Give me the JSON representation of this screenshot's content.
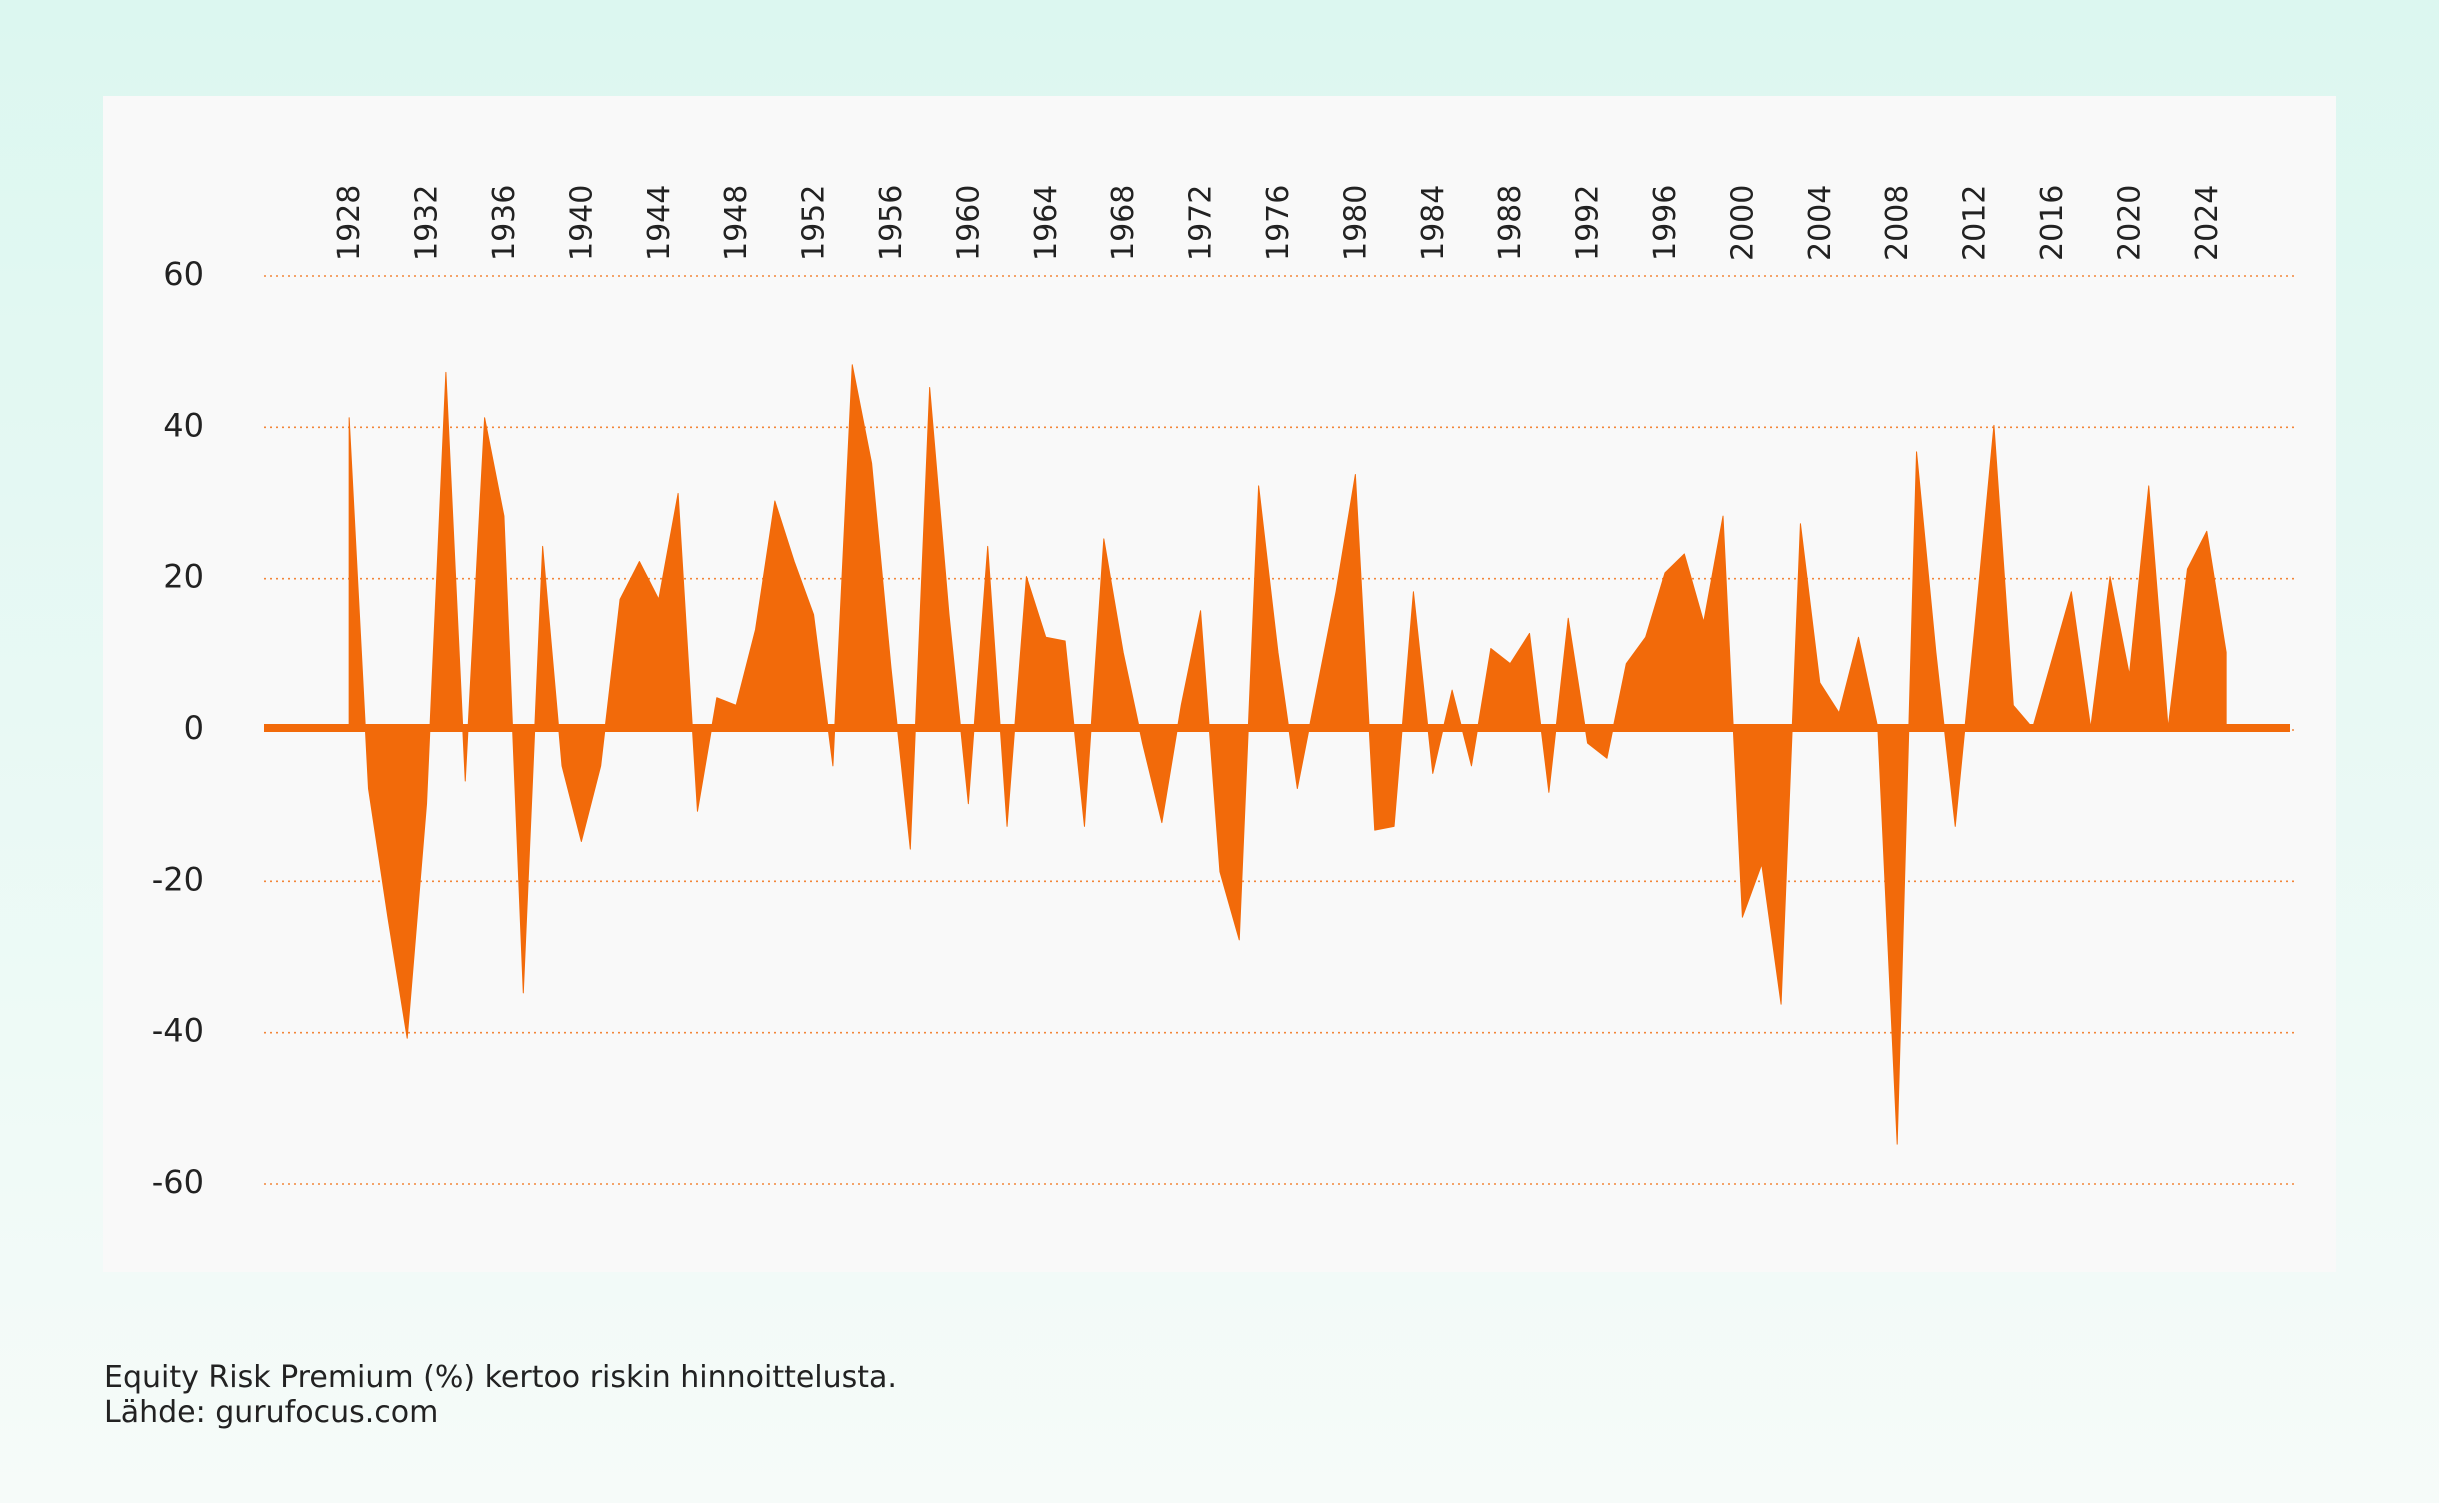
{
  "chart_data": {
    "type": "area",
    "color": "#f26a0a",
    "grid": true,
    "x": [
      1928,
      1929,
      1930,
      1931,
      1932,
      1933,
      1934,
      1935,
      1936,
      1937,
      1938,
      1939,
      1940,
      1941,
      1942,
      1943,
      1944,
      1945,
      1946,
      1947,
      1948,
      1949,
      1950,
      1951,
      1952,
      1953,
      1954,
      1955,
      1956,
      1957,
      1958,
      1959,
      1960,
      1961,
      1962,
      1963,
      1964,
      1965,
      1966,
      1967,
      1968,
      1969,
      1970,
      1971,
      1972,
      1973,
      1974,
      1975,
      1976,
      1977,
      1978,
      1979,
      1980,
      1981,
      1982,
      1983,
      1984,
      1985,
      1986,
      1987,
      1988,
      1989,
      1990,
      1991,
      1992,
      1993,
      1994,
      1995,
      1996,
      1997,
      1998,
      1999,
      2000,
      2001,
      2002,
      2003,
      2004,
      2005,
      2006,
      2007,
      2008,
      2009,
      2010,
      2011,
      2012,
      2013,
      2014,
      2015,
      2016,
      2017,
      2018,
      2019,
      2020,
      2021,
      2022,
      2023,
      2024,
      2025
    ],
    "values": [
      41,
      -8,
      -25,
      -41,
      -10,
      47,
      -7,
      41,
      28,
      -35,
      24,
      -5,
      -15,
      -5,
      17,
      22,
      17,
      31,
      -11,
      4,
      3,
      13,
      30,
      22,
      15,
      -5,
      48,
      35,
      8,
      -16,
      45,
      15,
      -10,
      24,
      -13,
      20,
      12,
      11.5,
      -13,
      25,
      10,
      -2,
      -12.5,
      3,
      15.5,
      -19,
      -28,
      32,
      10,
      -8,
      5,
      18,
      33.5,
      -13.5,
      -13,
      18,
      -6,
      5,
      -5,
      10.5,
      8.5,
      12.5,
      -8.5,
      14.5,
      -2,
      -4,
      8.5,
      12,
      20.5,
      23,
      14,
      28,
      -25,
      -18,
      -36.5,
      27,
      6,
      2,
      12,
      0,
      -55,
      36.5,
      10,
      -13,
      13,
      40,
      3,
      0,
      9,
      18,
      0,
      20,
      7,
      32,
      0,
      21,
      26,
      10
    ],
    "xlim": [
      1923.6,
      2028.3
    ],
    "xticks": [
      1928,
      1932,
      1936,
      1940,
      1944,
      1948,
      1952,
      1956,
      1960,
      1964,
      1968,
      1972,
      1976,
      1980,
      1984,
      1988,
      1992,
      1996,
      2000,
      2004,
      2008,
      2012,
      2016,
      2020,
      2024
    ],
    "ylim": [
      -60,
      60
    ],
    "yticks": [
      -60,
      -40,
      -20,
      0,
      20,
      40,
      60
    ],
    "annotations": [
      "Equity Risk Premium (%) kertoo riskin hinnoittelusta.",
      "Lähde: gurufocus.com"
    ]
  }
}
